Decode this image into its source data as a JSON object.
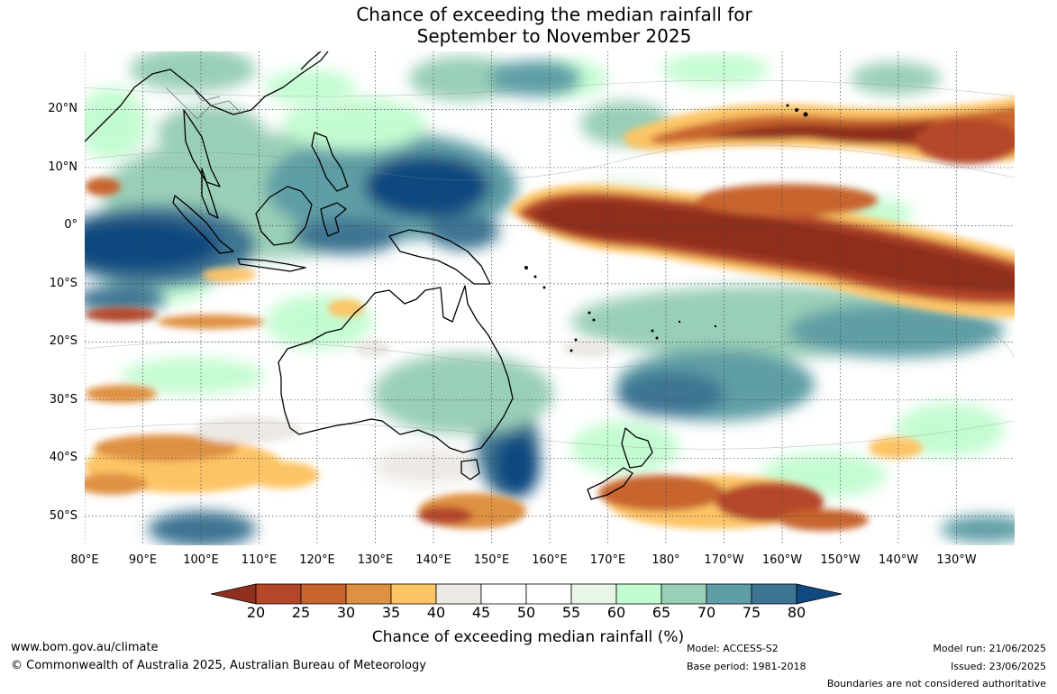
{
  "title": {
    "line1": "Chance of exceeding the median rainfall for",
    "line2": "September to November 2025"
  },
  "map": {
    "lon_range": [
      80,
      240
    ],
    "lat_range": [
      -55,
      30
    ],
    "latitude_labels": [
      {
        "lat": 20,
        "label": "20°N"
      },
      {
        "lat": 10,
        "label": "10°N"
      },
      {
        "lat": 0,
        "label": "0°"
      },
      {
        "lat": -10,
        "label": "10°S"
      },
      {
        "lat": -20,
        "label": "20°S"
      },
      {
        "lat": -30,
        "label": "30°S"
      },
      {
        "lat": -40,
        "label": "40°S"
      },
      {
        "lat": -50,
        "label": "50°S"
      }
    ],
    "longitude_labels": [
      {
        "lon": 80,
        "label": "80°E"
      },
      {
        "lon": 90,
        "label": "90°E"
      },
      {
        "lon": 100,
        "label": "100°E"
      },
      {
        "lon": 110,
        "label": "110°E"
      },
      {
        "lon": 120,
        "label": "120°E"
      },
      {
        "lon": 130,
        "label": "130°E"
      },
      {
        "lon": 140,
        "label": "140°E"
      },
      {
        "lon": 150,
        "label": "150°E"
      },
      {
        "lon": 160,
        "label": "160°E"
      },
      {
        "lon": 170,
        "label": "170°E"
      },
      {
        "lon": 180,
        "label": "180°"
      },
      {
        "lon": 190,
        "label": "170°W"
      },
      {
        "lon": 200,
        "label": "160°W"
      },
      {
        "lon": 210,
        "label": "150°W"
      },
      {
        "lon": 220,
        "label": "140°W"
      },
      {
        "lon": 230,
        "label": "130°W"
      }
    ],
    "regions": [
      {
        "name": "equatorial-pacific-dry-band",
        "percent": 20,
        "lon": [
          155,
          240
        ],
        "lat": [
          -9,
          4
        ],
        "color": "#8f2f1e"
      },
      {
        "name": "north-pacific-dry-band",
        "percent": 25,
        "lon": [
          177,
          240
        ],
        "lat": [
          9,
          20
        ],
        "color": "#b5462a"
      },
      {
        "name": "maritime-continent-wet",
        "percent": 75,
        "lon": [
          80,
          150
        ],
        "lat": [
          -10,
          10
        ],
        "color": "#10497f"
      },
      {
        "name": "south-pacific-wet-band",
        "percent": 70,
        "lon": [
          170,
          230
        ],
        "lat": [
          -33,
          -13
        ],
        "color": "#5f9ea6"
      },
      {
        "name": "tasman-wet",
        "percent": 75,
        "lon": [
          148,
          158
        ],
        "lat": [
          -48,
          -35
        ],
        "color": "#10497f"
      },
      {
        "name": "southern-ocean-dry-west",
        "percent": 30,
        "lon": [
          80,
          118
        ],
        "lat": [
          -50,
          -35
        ],
        "color": "#c8652f"
      },
      {
        "name": "southern-ocean-dry-east",
        "percent": 25,
        "lon": [
          160,
          207
        ],
        "lat": [
          -53,
          -44
        ],
        "color": "#b5462a"
      }
    ]
  },
  "colorbar": {
    "levels": [
      20,
      25,
      30,
      35,
      40,
      45,
      50,
      55,
      60,
      65,
      70,
      75,
      80
    ],
    "colors": [
      "#8f2f1e",
      "#b5462a",
      "#c8652f",
      "#df9142",
      "#fdc466",
      "#ece9e4",
      "#ffffff",
      "#ffffff",
      "#e8f6e9",
      "#c4fcd1",
      "#9acfb7",
      "#5f9ea6",
      "#3d7593",
      "#10497f"
    ],
    "title": "Chance of exceeding median rainfall (%)"
  },
  "footer": {
    "website": "www.bom.gov.au/climate",
    "copyright": "© Commonwealth of Australia 2025, Australian Bureau of Meteorology",
    "model": "Model: ACCESS-S2",
    "base_period": "Base period: 1981-2018",
    "model_run": "Model run: 21/06/2025",
    "issued": "Issued: 23/06/2025",
    "disclaimer": "Boundaries are not considered authoritative"
  }
}
